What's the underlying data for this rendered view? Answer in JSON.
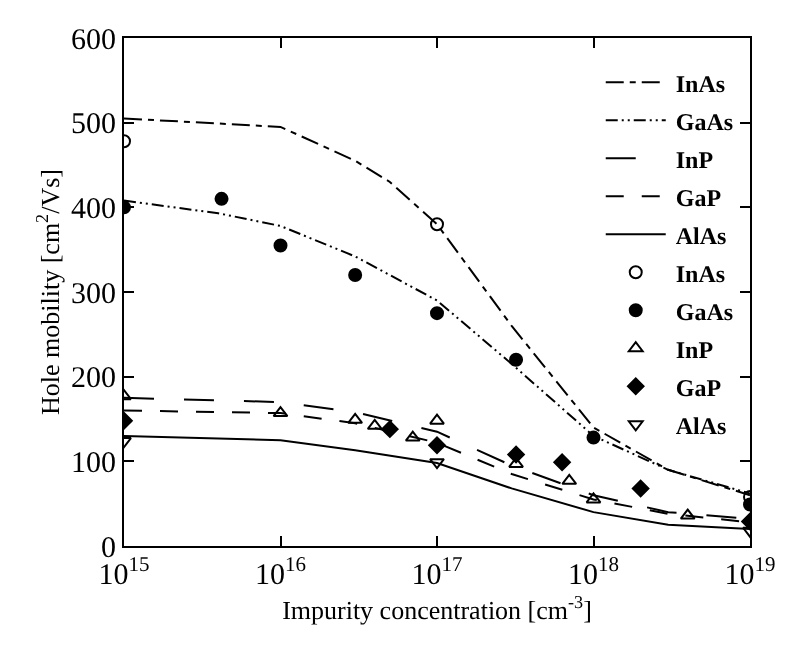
{
  "chart_data": {
    "type": "line",
    "xlabel": "Impurity concentration [cm$^{-3}$]",
    "ylabel": "Hole mobility [cm$^{2}$/Vs]",
    "log": "x",
    "xlim": [
      1000000000000000.0,
      1e+19
    ],
    "ylim": [
      0,
      600
    ],
    "xticks": [
      {
        "value": 1000000000000000.0,
        "label": "10$^{15}$"
      },
      {
        "value": 1e+16,
        "label": "10$^{16}$"
      },
      {
        "value": 1e+17,
        "label": "10$^{17}$"
      },
      {
        "value": 1e+18,
        "label": "10$^{18}$"
      },
      {
        "value": 1e+19,
        "label": "10$^{19}$"
      }
    ],
    "yticks": [
      0,
      100,
      200,
      300,
      400,
      500,
      600
    ],
    "legend": "top right",
    "series": [
      {
        "name": "InAs",
        "color": "#000000",
        "line_style": "dashdot",
        "marker": "none",
        "x": [
          1000000000000000.0,
          1e+16,
          3e+16,
          5e+16,
          1e+17,
          3e+17,
          1e+18,
          3e+18,
          1e+19
        ],
        "values": [
          505,
          495,
          455,
          430,
          380,
          260,
          140,
          90,
          60
        ]
      },
      {
        "name": "GaAs",
        "color": "#000000",
        "line_style": "dashdotdot",
        "marker": "none",
        "x": [
          1000000000000000.0,
          4000000000000000.0,
          1e+16,
          3e+16,
          1e+17,
          3e+17,
          1e+18,
          3e+18,
          1e+19
        ],
        "values": [
          408,
          393,
          378,
          342,
          290,
          215,
          130,
          90,
          62
        ]
      },
      {
        "name": "InP",
        "color": "#000000",
        "line_style": "longdash",
        "marker": "none",
        "x": [
          1000000000000000.0,
          1e+16,
          3e+16,
          1e+17,
          3e+17,
          1e+18,
          3e+18,
          1e+19
        ],
        "values": [
          175,
          170,
          158,
          135,
          95,
          60,
          40,
          32
        ]
      },
      {
        "name": "GaP",
        "color": "#000000",
        "line_style": "dashed",
        "marker": "none",
        "x": [
          1000000000000000.0,
          1e+16,
          3e+16,
          1e+17,
          3e+17,
          1e+18,
          3e+18,
          1e+19
        ],
        "values": [
          160,
          157,
          145,
          122,
          85,
          55,
          38,
          28
        ]
      },
      {
        "name": "AlAs",
        "color": "#000000",
        "line_style": "solid",
        "marker": "none",
        "x": [
          1000000000000000.0,
          1e+16,
          3e+16,
          1e+17,
          3e+17,
          1e+18,
          3e+18,
          1e+19
        ],
        "values": [
          130,
          125,
          113,
          98,
          68,
          40,
          25,
          20
        ]
      },
      {
        "name": "InAs",
        "type": "scatter",
        "color": "#000000",
        "marker": "circle-open",
        "x": [
          1000000000000000.0,
          1e+17,
          1e+19
        ],
        "values": [
          478,
          380,
          58
        ]
      },
      {
        "name": "GaAs",
        "type": "scatter",
        "color": "#000000",
        "marker": "circle",
        "x": [
          1000000000000000.0,
          4200000000000000.0,
          1e+16,
          3e+16,
          1e+17,
          3.2e+17,
          1e+18,
          1e+19
        ],
        "values": [
          400,
          410,
          355,
          320,
          275,
          220,
          128,
          49
        ]
      },
      {
        "name": "InP",
        "type": "scatter",
        "color": "#000000",
        "marker": "triangle-up-open",
        "x": [
          1000000000000000.0,
          1e+16,
          3e+16,
          4e+16,
          7e+16,
          1e+17,
          3.2e+17,
          7e+17,
          1e+18,
          4e+18
        ],
        "values": [
          177,
          157,
          149,
          142,
          128,
          148,
          97,
          77,
          55,
          36
        ]
      },
      {
        "name": "GaP",
        "type": "scatter",
        "color": "#000000",
        "marker": "diamond",
        "x": [
          1000000000000000.0,
          5e+16,
          1e+17,
          3.2e+17,
          6.3e+17,
          2e+18,
          1e+19
        ],
        "values": [
          148,
          138,
          119,
          108,
          99,
          68,
          29
        ]
      },
      {
        "name": "AlAs",
        "type": "scatter",
        "color": "#000000",
        "marker": "triangle-down-open",
        "x": [
          1000000000000000.0,
          1e+17,
          1e+19
        ],
        "values": [
          124,
          99,
          18
        ]
      }
    ]
  }
}
